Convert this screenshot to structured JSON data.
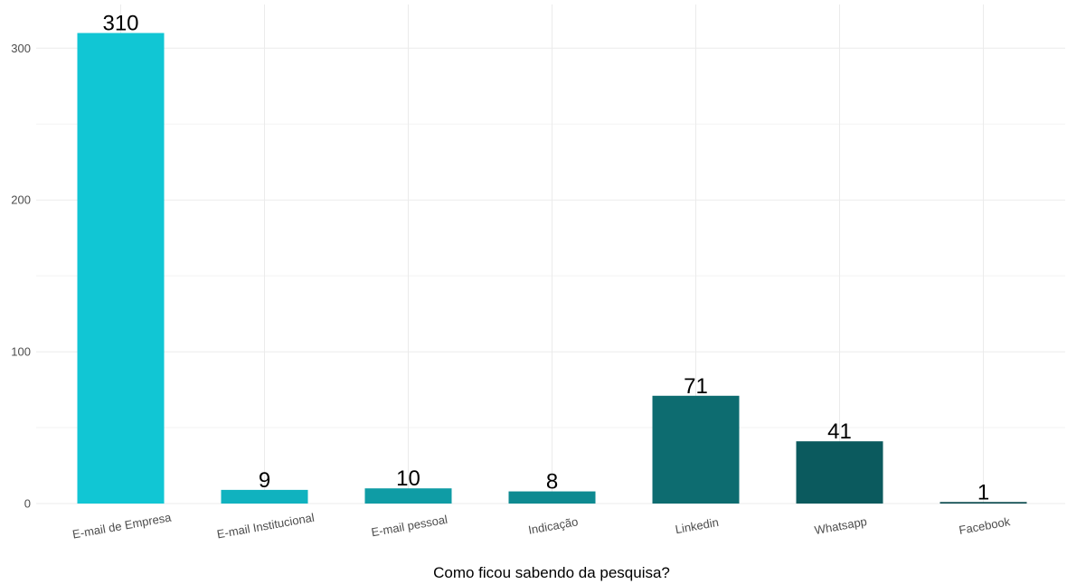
{
  "chart_data": {
    "type": "bar",
    "xlabel": "Como ficou sabendo da pesquisa?",
    "ylabel": "",
    "categories": [
      "E-mail de Empresa",
      "E-mail Institucional",
      "E-mail pessoal",
      "Indicação",
      "Linkedin",
      "Whatsapp",
      "Facebook"
    ],
    "values": [
      310,
      9,
      10,
      8,
      71,
      41,
      1
    ],
    "data_labels": [
      "310",
      "9",
      "10",
      "8",
      "71",
      "41",
      "1"
    ],
    "yticks": [
      0,
      100,
      200,
      300
    ],
    "ytick_labels": [
      "0",
      "100",
      "200",
      "300"
    ],
    "ylim": [
      0,
      325
    ],
    "bar_colors": [
      "#11c6d4",
      "#10b2bf",
      "#0f9ca5",
      "#0e8a91",
      "#0d6c70",
      "#0b5a5e",
      "#0a4a4e"
    ],
    "grid": true,
    "legend": "none"
  }
}
